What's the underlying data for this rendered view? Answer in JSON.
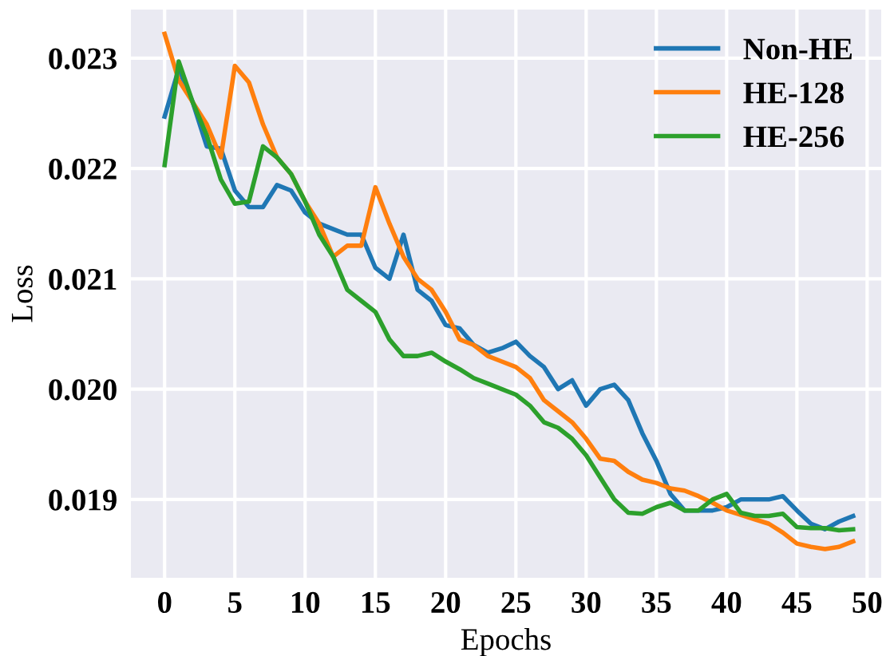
{
  "chart_data": {
    "type": "line",
    "xlabel": "Epochs",
    "ylabel": "Loss",
    "x": [
      0,
      1,
      2,
      3,
      4,
      5,
      6,
      7,
      8,
      9,
      10,
      11,
      12,
      13,
      14,
      15,
      16,
      17,
      18,
      19,
      20,
      21,
      22,
      23,
      24,
      25,
      26,
      27,
      28,
      29,
      30,
      31,
      32,
      33,
      34,
      35,
      36,
      37,
      38,
      39,
      40,
      41,
      42,
      43,
      44,
      45,
      46,
      47,
      48,
      49
    ],
    "series": [
      {
        "name": "Non-HE",
        "color": "#1f77b4",
        "values": [
          0.02247,
          0.0229,
          0.0226,
          0.0222,
          0.02218,
          0.0218,
          0.02165,
          0.02165,
          0.02185,
          0.0218,
          0.0216,
          0.0215,
          0.02145,
          0.0214,
          0.0214,
          0.0211,
          0.021,
          0.0214,
          0.0209,
          0.0208,
          0.02058,
          0.02055,
          0.0204,
          0.02033,
          0.02037,
          0.02043,
          0.0203,
          0.0202,
          0.02,
          0.02008,
          0.01985,
          0.02,
          0.02004,
          0.0199,
          0.0196,
          0.01935,
          0.01905,
          0.0189,
          0.0189,
          0.0189,
          0.01893,
          0.019,
          0.019,
          0.019,
          0.01903,
          0.0189,
          0.01878,
          0.01873,
          0.0188,
          0.01885
        ]
      },
      {
        "name": "HE-128",
        "color": "#ff7f0e",
        "values": [
          0.02322,
          0.0228,
          0.0226,
          0.0224,
          0.0221,
          0.02293,
          0.02278,
          0.0224,
          0.0221,
          0.02195,
          0.0217,
          0.0215,
          0.0212,
          0.0213,
          0.0213,
          0.02183,
          0.0215,
          0.0212,
          0.021,
          0.0209,
          0.0207,
          0.02045,
          0.0204,
          0.0203,
          0.02025,
          0.0202,
          0.0201,
          0.0199,
          0.0198,
          0.0197,
          0.01955,
          0.01937,
          0.01935,
          0.01925,
          0.01918,
          0.01915,
          0.0191,
          0.01908,
          0.01903,
          0.01897,
          0.0189,
          0.01886,
          0.01882,
          0.01878,
          0.0187,
          0.0186,
          0.01857,
          0.01855,
          0.01857,
          0.01862
        ]
      },
      {
        "name": "HE-256",
        "color": "#2ca02c",
        "values": [
          0.02203,
          0.02297,
          0.0226,
          0.0223,
          0.0219,
          0.02168,
          0.0217,
          0.0222,
          0.0221,
          0.02195,
          0.0217,
          0.0214,
          0.0212,
          0.0209,
          0.0208,
          0.0207,
          0.02045,
          0.0203,
          0.0203,
          0.02033,
          0.02025,
          0.02018,
          0.0201,
          0.02005,
          0.02,
          0.01995,
          0.01985,
          0.0197,
          0.01965,
          0.01955,
          0.0194,
          0.0192,
          0.019,
          0.01888,
          0.01887,
          0.01893,
          0.01897,
          0.0189,
          0.0189,
          0.019,
          0.01905,
          0.01888,
          0.01885,
          0.01885,
          0.01887,
          0.01875,
          0.01874,
          0.01874,
          0.01872,
          0.01873
        ]
      }
    ],
    "xlim": [
      -2.4,
      51
    ],
    "xticks": [
      0,
      5,
      10,
      15,
      20,
      25,
      30,
      35,
      40,
      45,
      50
    ],
    "ylim": [
      0.01829,
      0.02344
    ],
    "yticks": [
      {
        "value": 0.019,
        "label": "0.019"
      },
      {
        "value": 0.02,
        "label": "0.020"
      },
      {
        "value": 0.021,
        "label": "0.021"
      },
      {
        "value": 0.022,
        "label": "0.022"
      },
      {
        "value": 0.023,
        "label": "0.023"
      }
    ],
    "grid": true,
    "legend": "top right",
    "marker": "none",
    "line_style": "solid"
  }
}
